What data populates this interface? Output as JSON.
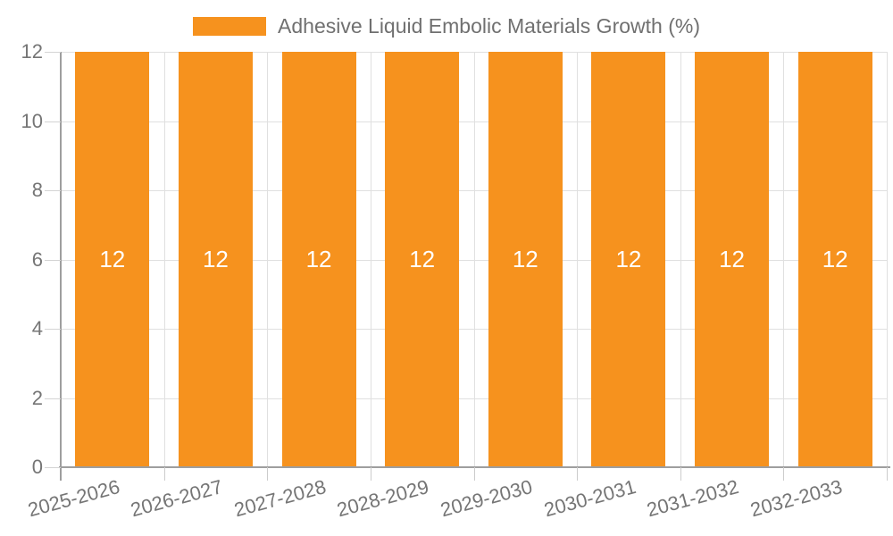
{
  "legend": {
    "label": "Adhesive Liquid Embolic Materials Growth (%)"
  },
  "colors": {
    "bar": "#F6921E",
    "axis": "#9E9E9E",
    "grid": "#E0E0E0",
    "tick_mark": "#D4D4D4",
    "tick_label": "#757575",
    "legend_text": "#707070",
    "value_label": "#FFFFFF",
    "background": "#FFFFFF"
  },
  "chart_data": {
    "type": "bar",
    "title": "Adhesive Liquid Embolic Materials Growth (%)",
    "xlabel": "",
    "ylabel": "",
    "categories": [
      "2025-2026",
      "2026-2027",
      "2027-2028",
      "2028-2029",
      "2029-2030",
      "2030-2031",
      "2031-2032",
      "2032-2033"
    ],
    "series": [
      {
        "name": "Adhesive Liquid Embolic Materials Growth (%)",
        "values": [
          12,
          12,
          12,
          12,
          12,
          12,
          12,
          12
        ]
      }
    ],
    "value_labels": [
      "12",
      "12",
      "12",
      "12",
      "12",
      "12",
      "12",
      "12"
    ],
    "ylim": [
      0,
      12
    ],
    "yticks": [
      0,
      2,
      4,
      6,
      8,
      10,
      12
    ],
    "grid": true,
    "legend_position": "top",
    "x_label_rotation_deg": -15
  }
}
